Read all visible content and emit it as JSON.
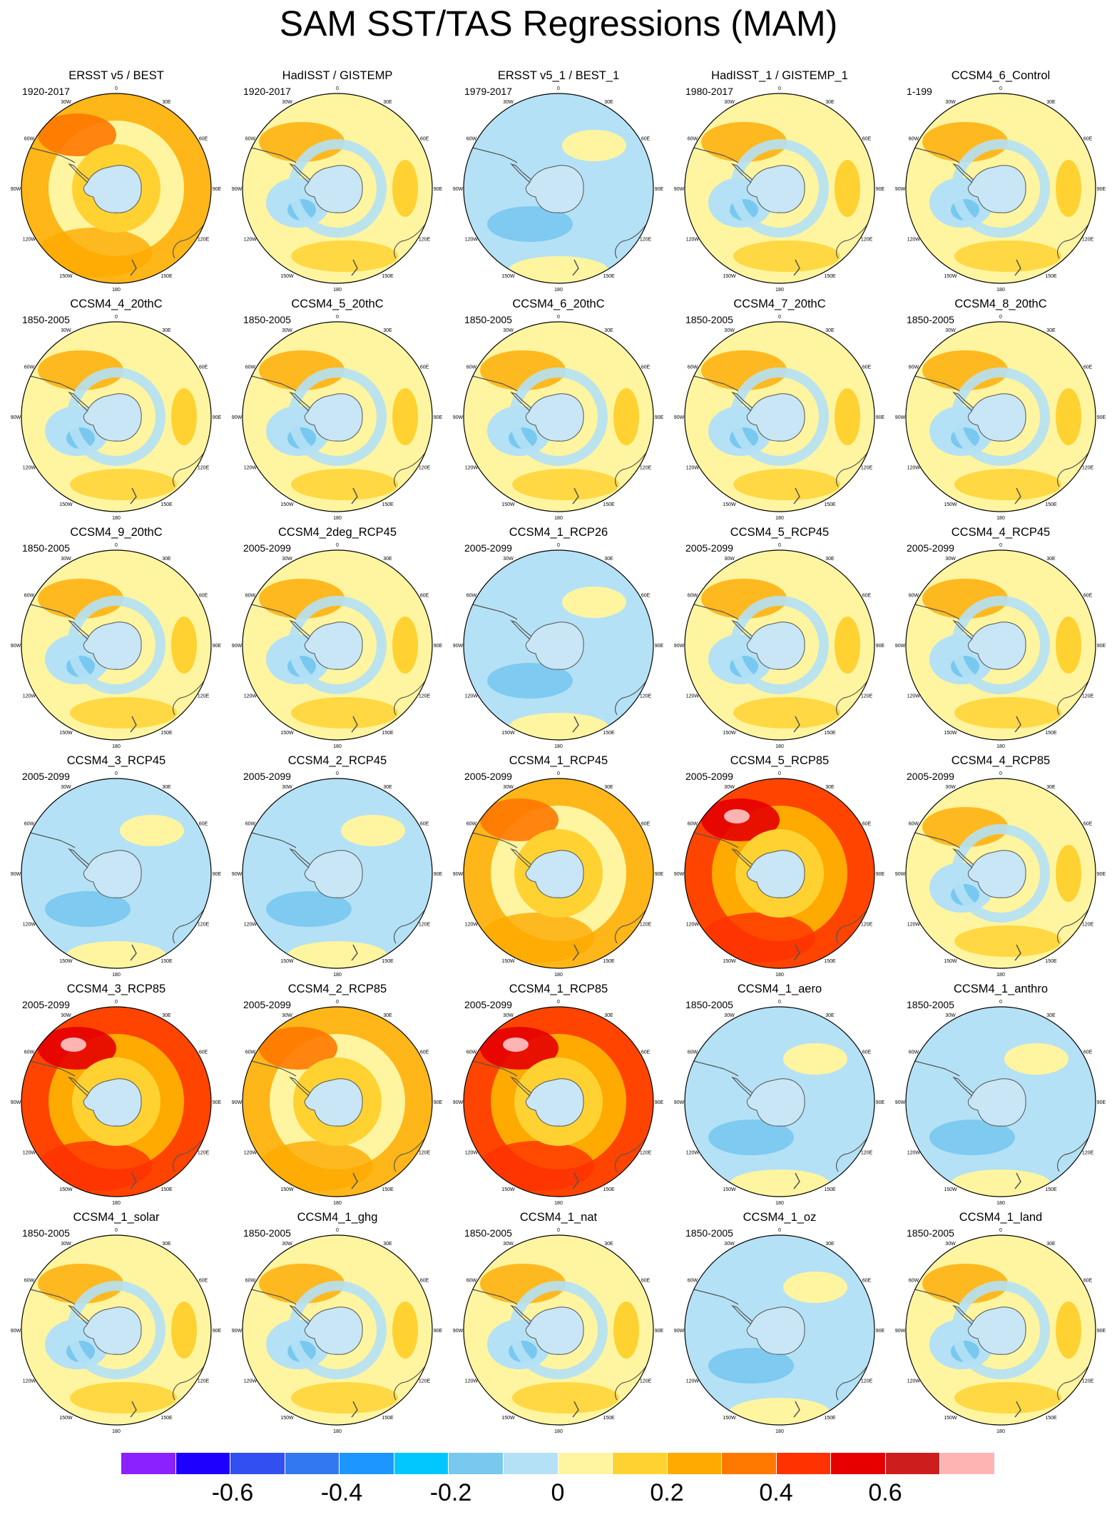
{
  "title": "SAM SST/TAS Regressions (MAM)",
  "panels": [
    {
      "title": "ERSST v5 / BEST",
      "period": "1920-2017"
    },
    {
      "title": "HadISST / GISTEMP",
      "period": "1920-2017"
    },
    {
      "title": "ERSST v5_1 / BEST_1",
      "period": "1979-2017"
    },
    {
      "title": "HadISST_1 / GISTEMP_1",
      "period": "1980-2017"
    },
    {
      "title": "CCSM4_6_Control",
      "period": "1-199"
    },
    {
      "title": "CCSM4_4_20thC",
      "period": "1850-2005"
    },
    {
      "title": "CCSM4_5_20thC",
      "period": "1850-2005"
    },
    {
      "title": "CCSM4_6_20thC",
      "period": "1850-2005"
    },
    {
      "title": "CCSM4_7_20thC",
      "period": "1850-2005"
    },
    {
      "title": "CCSM4_8_20thC",
      "period": "1850-2005"
    },
    {
      "title": "CCSM4_9_20thC",
      "period": "1850-2005"
    },
    {
      "title": "CCSM4_2deg_RCP45",
      "period": "2005-2099"
    },
    {
      "title": "CCSM4_1_RCP26",
      "period": "2005-2099"
    },
    {
      "title": "CCSM4_5_RCP45",
      "period": "2005-2099"
    },
    {
      "title": "CCSM4_4_RCP45",
      "period": "2005-2099"
    },
    {
      "title": "CCSM4_3_RCP45",
      "period": "2005-2099"
    },
    {
      "title": "CCSM4_2_RCP45",
      "period": "2005-2099"
    },
    {
      "title": "CCSM4_1_RCP45",
      "period": "2005-2099"
    },
    {
      "title": "CCSM4_5_RCP85",
      "period": "2005-2099"
    },
    {
      "title": "CCSM4_4_RCP85",
      "period": "2005-2099"
    },
    {
      "title": "CCSM4_3_RCP85",
      "period": "2005-2099"
    },
    {
      "title": "CCSM4_2_RCP85",
      "period": "2005-2099"
    },
    {
      "title": "CCSM4_1_RCP85",
      "period": "2005-2099"
    },
    {
      "title": "CCSM4_1_aero",
      "period": "1850-2005"
    },
    {
      "title": "CCSM4_1_anthro",
      "period": "1850-2005"
    },
    {
      "title": "CCSM4_1_solar",
      "period": "1850-2005"
    },
    {
      "title": "CCSM4_1_ghg",
      "period": "1850-2005"
    },
    {
      "title": "CCSM4_1_nat",
      "period": "1850-2005"
    },
    {
      "title": "CCSM4_1_oz",
      "period": "1850-2005"
    },
    {
      "title": "CCSM4_1_land",
      "period": "1850-2005"
    }
  ],
  "lon_labels": [
    "0",
    "30E",
    "60E",
    "90E",
    "120E",
    "150E",
    "180",
    "150W",
    "120W",
    "90W",
    "60W",
    "30W"
  ],
  "colorbar": {
    "colors": [
      "#8b21ff",
      "#1e00ff",
      "#3250f0",
      "#3278f0",
      "#1e96ff",
      "#00c8ff",
      "#78c8f0",
      "#b4e1f5",
      "#fff5a0",
      "#ffd232",
      "#ffaa00",
      "#ff7800",
      "#ff3200",
      "#e60000",
      "#cd1e1e",
      "#ffb4b4"
    ],
    "tick_labels": [
      "-0.6",
      "-0.4",
      "-0.2",
      "0",
      "0.2",
      "0.4",
      "0.6"
    ]
  }
}
